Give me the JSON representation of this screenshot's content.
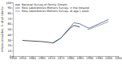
{
  "chart_data": {
    "type": "line",
    "y_label": "Infants breastfed, % of all infants",
    "x": [
      1955,
      1960,
      1965,
      1970,
      1971,
      1975,
      1980,
      1982,
      1985,
      1989,
      1990,
      1995,
      2000
    ],
    "series": [
      {
        "name": "National Survey of Family Growth",
        "color": "#222222",
        "values": [
          29,
          28,
          27,
          25,
          24,
          33,
          52,
          57,
          54,
          null,
          null,
          null,
          null
        ]
      },
      {
        "name": "Ross Laboratories Mothers Survey, in the hospital",
        "color": "#3b5ba5",
        "values": [
          null,
          null,
          null,
          null,
          25,
          33,
          54,
          62,
          60,
          53,
          52,
          60,
          68
        ]
      },
      {
        "name": "Ross Laboratories Mothers Survey, at age 1 week",
        "color": "#8a8a8a",
        "values": [
          null,
          null,
          null,
          null,
          null,
          null,
          null,
          null,
          null,
          50,
          50,
          57,
          64
        ]
      }
    ],
    "xlim": [
      1950,
      2005
    ],
    "xticks": [
      1950,
      1955,
      1960,
      1965,
      1970,
      1975,
      1980,
      1985,
      1990,
      1995,
      2000,
      2005
    ],
    "ylim": [
      0,
      100
    ],
    "yticks": [
      0,
      10,
      20,
      30,
      40,
      50,
      60,
      70,
      80,
      90,
      100
    ],
    "legend": "upper left",
    "grid": false
  }
}
